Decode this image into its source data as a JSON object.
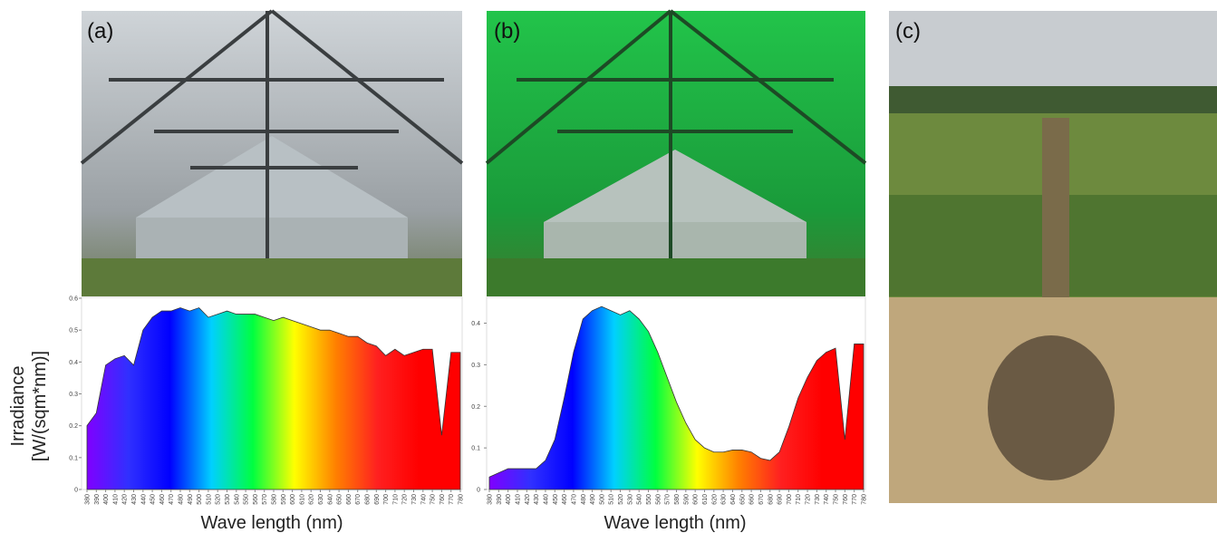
{
  "panels": [
    "(a)",
    "(b)",
    "(c)"
  ],
  "chart_data": [
    {
      "type": "area",
      "xlabel": "Wave length (nm)",
      "ylabel": [
        "Irradiance",
        "[W/(sqm*nm)]"
      ],
      "x": [
        380,
        390,
        400,
        410,
        420,
        430,
        440,
        450,
        460,
        470,
        480,
        490,
        500,
        510,
        520,
        530,
        540,
        550,
        560,
        570,
        580,
        590,
        600,
        610,
        620,
        630,
        640,
        650,
        660,
        670,
        680,
        690,
        700,
        710,
        720,
        730,
        740,
        750,
        760,
        770,
        780
      ],
      "values": [
        0.2,
        0.24,
        0.39,
        0.41,
        0.42,
        0.39,
        0.5,
        0.54,
        0.56,
        0.56,
        0.57,
        0.56,
        0.57,
        0.54,
        0.55,
        0.56,
        0.55,
        0.55,
        0.55,
        0.54,
        0.53,
        0.54,
        0.53,
        0.52,
        0.51,
        0.5,
        0.5,
        0.49,
        0.48,
        0.48,
        0.46,
        0.45,
        0.42,
        0.44,
        0.42,
        0.43,
        0.44,
        0.44,
        0.17,
        0.43,
        0.43
      ],
      "xlim": [
        380,
        780
      ],
      "xticks": [
        380,
        390,
        400,
        410,
        420,
        430,
        440,
        450,
        460,
        470,
        480,
        490,
        500,
        510,
        520,
        530,
        540,
        550,
        560,
        570,
        580,
        590,
        600,
        610,
        620,
        630,
        640,
        650,
        660,
        670,
        680,
        690,
        700,
        710,
        720,
        730,
        740,
        750,
        760,
        770,
        780
      ],
      "ylim": [
        0,
        0.6
      ],
      "yticks": [
        0,
        0.1,
        0.2,
        0.3,
        0.4,
        0.5,
        0.6
      ],
      "colors": [
        "#8000ff",
        "#3030ff",
        "#0000ff",
        "#00d0ff",
        "#00ff40",
        "#ffff00",
        "#ff8000",
        "#ff2020",
        "#ff0000",
        "#ff0000"
      ]
    },
    {
      "type": "area",
      "xlabel": "Wave length (nm)",
      "x": [
        380,
        390,
        400,
        410,
        420,
        430,
        440,
        450,
        460,
        470,
        480,
        490,
        500,
        510,
        520,
        530,
        540,
        550,
        560,
        570,
        580,
        590,
        600,
        610,
        620,
        630,
        640,
        650,
        660,
        670,
        680,
        690,
        700,
        710,
        720,
        730,
        740,
        750,
        760,
        770,
        780
      ],
      "values": [
        0.03,
        0.04,
        0.05,
        0.05,
        0.05,
        0.05,
        0.07,
        0.12,
        0.22,
        0.33,
        0.41,
        0.43,
        0.44,
        0.43,
        0.42,
        0.43,
        0.41,
        0.38,
        0.33,
        0.27,
        0.21,
        0.16,
        0.12,
        0.1,
        0.09,
        0.09,
        0.095,
        0.095,
        0.09,
        0.075,
        0.07,
        0.09,
        0.15,
        0.22,
        0.27,
        0.31,
        0.33,
        0.34,
        0.12,
        0.35,
        0.35
      ],
      "xlim": [
        380,
        780
      ],
      "xticks": [
        380,
        390,
        400,
        410,
        420,
        430,
        440,
        450,
        460,
        470,
        480,
        490,
        500,
        510,
        520,
        530,
        540,
        550,
        560,
        570,
        580,
        590,
        600,
        610,
        620,
        630,
        640,
        650,
        660,
        670,
        680,
        690,
        700,
        710,
        720,
        730,
        740,
        750,
        760,
        770,
        780
      ],
      "ylim": [
        0,
        0.46
      ],
      "yticks": [
        0,
        0.1,
        0.2,
        0.3,
        0.4
      ],
      "colors": [
        "#8000ff",
        "#3030ff",
        "#0000ff",
        "#00d0ff",
        "#00ff40",
        "#ffff00",
        "#ff8000",
        "#ff2020",
        "#ff0000",
        "#ff0000"
      ]
    }
  ]
}
